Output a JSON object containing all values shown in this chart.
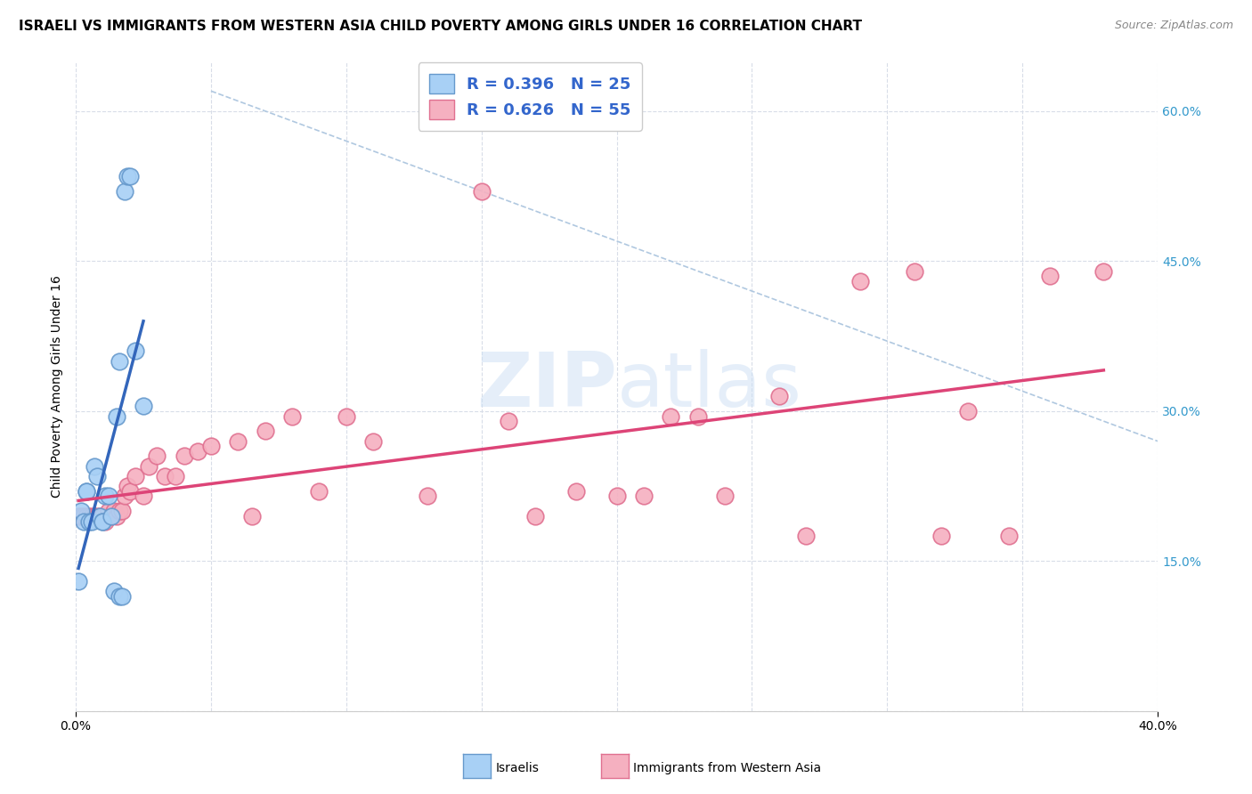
{
  "title": "ISRAELI VS IMMIGRANTS FROM WESTERN ASIA CHILD POVERTY AMONG GIRLS UNDER 16 CORRELATION CHART",
  "source": "Source: ZipAtlas.com",
  "ylabel": "Child Poverty Among Girls Under 16",
  "ytick_values": [
    0.0,
    0.15,
    0.3,
    0.45,
    0.6
  ],
  "xlim": [
    0.0,
    0.4
  ],
  "ylim": [
    0.0,
    0.65
  ],
  "watermark": "ZIPAtlas",
  "legend_r_n": [
    "R = 0.396   N = 25",
    "R = 0.626   N = 55"
  ],
  "legend_labels": [
    "Israelis",
    "Immigrants from Western Asia"
  ],
  "israeli_fill": "#a8d0f5",
  "immigrant_fill": "#f5b0c0",
  "israeli_edge": "#6699cc",
  "immigrant_edge": "#e07090",
  "israeli_line_color": "#3366bb",
  "immigrant_line_color": "#dd4477",
  "dashed_color": "#b0c8e0",
  "grid_color": "#d8dde8",
  "bg_color": "#ffffff",
  "israelis_x": [
    0.001,
    0.002,
    0.003,
    0.004,
    0.004,
    0.005,
    0.006,
    0.007,
    0.008,
    0.009,
    0.01,
    0.01,
    0.011,
    0.012,
    0.013,
    0.014,
    0.015,
    0.016,
    0.016,
    0.017,
    0.018,
    0.019,
    0.02,
    0.022,
    0.025
  ],
  "israelis_y": [
    0.13,
    0.2,
    0.19,
    0.22,
    0.22,
    0.19,
    0.19,
    0.245,
    0.235,
    0.195,
    0.19,
    0.19,
    0.215,
    0.215,
    0.195,
    0.12,
    0.295,
    0.35,
    0.115,
    0.115,
    0.52,
    0.535,
    0.535,
    0.36,
    0.305
  ],
  "immigrants_x": [
    0.001,
    0.002,
    0.003,
    0.004,
    0.005,
    0.006,
    0.007,
    0.008,
    0.009,
    0.01,
    0.011,
    0.012,
    0.013,
    0.014,
    0.015,
    0.016,
    0.017,
    0.018,
    0.019,
    0.02,
    0.022,
    0.025,
    0.027,
    0.03,
    0.033,
    0.037,
    0.04,
    0.045,
    0.05,
    0.06,
    0.065,
    0.07,
    0.08,
    0.09,
    0.1,
    0.11,
    0.13,
    0.15,
    0.16,
    0.17,
    0.185,
    0.2,
    0.21,
    0.22,
    0.23,
    0.24,
    0.26,
    0.27,
    0.29,
    0.31,
    0.32,
    0.33,
    0.345,
    0.36,
    0.38
  ],
  "immigrants_y": [
    0.195,
    0.195,
    0.195,
    0.195,
    0.195,
    0.195,
    0.195,
    0.195,
    0.195,
    0.195,
    0.19,
    0.2,
    0.195,
    0.2,
    0.195,
    0.2,
    0.2,
    0.215,
    0.225,
    0.22,
    0.235,
    0.215,
    0.245,
    0.255,
    0.235,
    0.235,
    0.255,
    0.26,
    0.265,
    0.27,
    0.195,
    0.28,
    0.295,
    0.22,
    0.295,
    0.27,
    0.215,
    0.52,
    0.29,
    0.195,
    0.22,
    0.215,
    0.215,
    0.295,
    0.295,
    0.215,
    0.315,
    0.175,
    0.43,
    0.44,
    0.175,
    0.3,
    0.175,
    0.435,
    0.44
  ],
  "title_fontsize": 11,
  "source_fontsize": 9,
  "legend_fontsize": 13,
  "axis_label_fontsize": 10,
  "tick_fontsize": 10
}
